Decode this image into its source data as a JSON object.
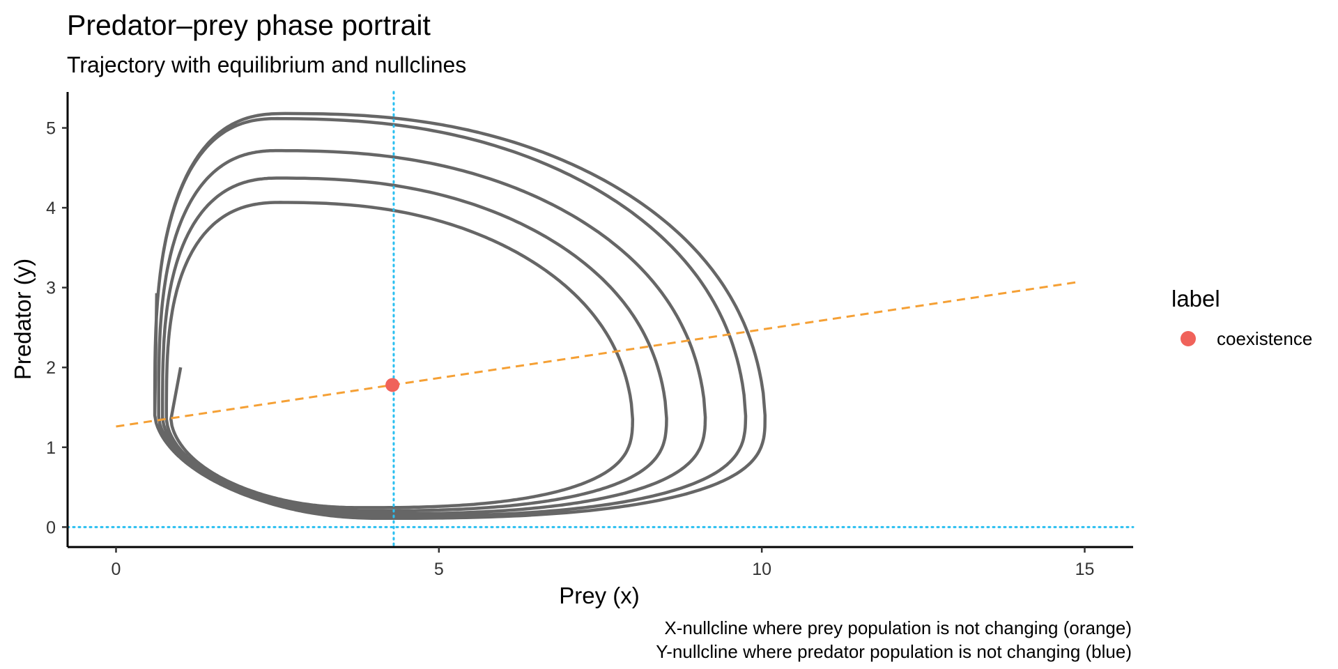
{
  "chart_data": {
    "type": "line",
    "title": "Predator–prey phase portrait",
    "subtitle": "Trajectory with equilibrium and nullclines",
    "xlabel": "Prey (x)",
    "ylabel": "Predator (y)",
    "xlim": [
      -0.75,
      15.75
    ],
    "ylim": [
      -0.25,
      5.45
    ],
    "x_ticks": [
      0,
      5,
      10,
      15
    ],
    "y_ticks": [
      0,
      1,
      2,
      3,
      4,
      5
    ],
    "grid": false,
    "captions": [
      "X-nullcline where prey population is not changing (orange)",
      "Y-nullcline where predator population is not changing (blue)"
    ],
    "legend": {
      "title": "label",
      "position": "right",
      "entries": [
        {
          "label": "coexistence",
          "color": "#f0625a"
        }
      ]
    },
    "trajectory": {
      "color": "#666666",
      "start": [
        1.0,
        2.0
      ],
      "end": [
        0.63,
        2.93
      ],
      "loops": [
        {
          "x_min": 0.85,
          "x_max": 7.75,
          "y_min": 0.25,
          "y_max": 3.83,
          "x_at_ymax": 3.1,
          "y_at_xmax": 1.35
        },
        {
          "x_min": 0.78,
          "x_max": 8.25,
          "y_min": 0.21,
          "y_max": 4.11,
          "x_at_ymax": 3.1,
          "y_at_xmax": 1.35
        },
        {
          "x_min": 0.72,
          "x_max": 8.8,
          "y_min": 0.17,
          "y_max": 4.42,
          "x_at_ymax": 3.1,
          "y_at_xmax": 1.37
        },
        {
          "x_min": 0.66,
          "x_max": 9.45,
          "y_min": 0.14,
          "y_max": 4.77,
          "x_at_ymax": 3.1,
          "y_at_xmax": 1.38
        },
        {
          "x_min": 0.6,
          "x_max": 10.05,
          "y_min": 0.11,
          "y_max": 5.18,
          "x_at_ymax": 3.1,
          "y_at_xmax": 1.4
        }
      ]
    },
    "x_nullcline": {
      "color": "#f5a035",
      "style": "dashed",
      "points": [
        [
          0,
          1.26
        ],
        [
          14.9,
          3.07
        ]
      ]
    },
    "y_nullclines": [
      {
        "color": "#29bff0",
        "style": "dotted",
        "orientation": "vertical",
        "x": 4.3
      },
      {
        "color": "#29bff0",
        "style": "dotted",
        "orientation": "horizontal",
        "y": 0
      }
    ],
    "equilibrium": {
      "label": "coexistence",
      "x": 4.28,
      "y": 1.78,
      "color": "#f0625a"
    }
  }
}
